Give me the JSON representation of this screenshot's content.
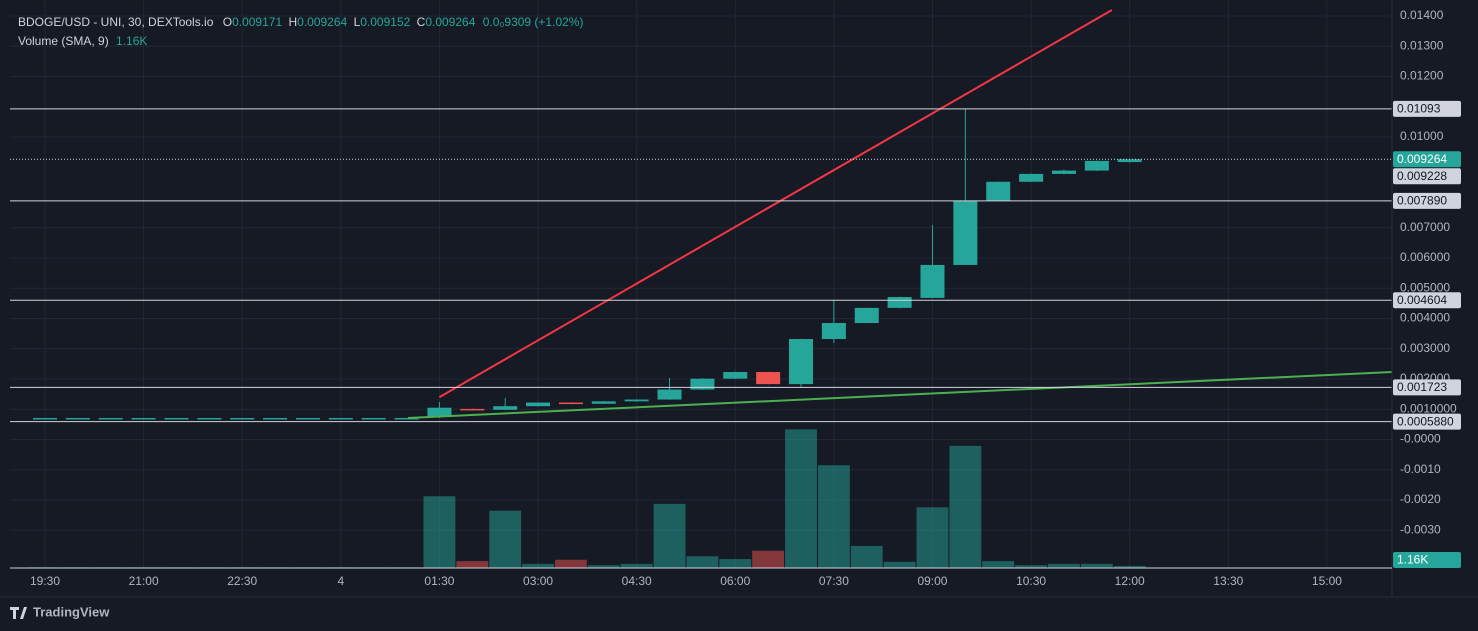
{
  "chart_data": {
    "type": "candlestick",
    "header": {
      "symbol": "BDOGE/USD - UNI, 30, DEXTools.io",
      "ohlc": [
        {
          "k": "O",
          "v": "0.009171"
        },
        {
          "k": "H",
          "v": "0.009264"
        },
        {
          "k": "L",
          "v": "0.009152"
        },
        {
          "k": "C",
          "v": "0.009264"
        }
      ],
      "change": "0.0₀9309 (+1.02%)",
      "volume_name": "Volume (SMA, 9)",
      "volume_value": "1.16K"
    },
    "brand": "TradingView",
    "up_color": "#26a69a",
    "down_color": "#ef5350",
    "open": [
      0.00071,
      0.00071,
      0.00071,
      0.00071,
      0.00071,
      0.00071,
      0.00071,
      0.00071,
      0.00071,
      0.00071,
      0.00071,
      0.00071,
      0.00075,
      0.00101,
      0.00098,
      0.0011,
      0.00122,
      0.00118,
      0.00126,
      0.00132,
      0.00165,
      0.00201,
      0.00223,
      0.00183,
      0.00332,
      0.00385,
      0.00435,
      0.00468,
      0.00577,
      0.00789,
      0.00852,
      0.00878,
      0.00889,
      0.009171
    ],
    "high": [
      0.00071,
      0.00071,
      0.00071,
      0.00071,
      0.00071,
      0.00071,
      0.00071,
      0.00071,
      0.00071,
      0.00071,
      0.00071,
      0.00071,
      0.00124,
      0.00102,
      0.00137,
      0.00123,
      0.00123,
      0.00127,
      0.00133,
      0.00203,
      0.00203,
      0.00224,
      0.00224,
      0.00333,
      0.00461,
      0.00436,
      0.00472,
      0.00709,
      0.01093,
      0.00853,
      0.00879,
      0.00892,
      0.00922,
      0.009264
    ],
    "low": [
      0.00071,
      0.00071,
      0.00071,
      0.00071,
      0.00071,
      0.00071,
      0.00071,
      0.00071,
      0.00071,
      0.00071,
      0.00071,
      0.00071,
      0.00071,
      0.00097,
      0.00097,
      0.00109,
      0.00117,
      0.00117,
      0.00125,
      0.00131,
      0.00164,
      0.002,
      0.00182,
      0.00174,
      0.00319,
      0.00384,
      0.00434,
      0.00467,
      0.00577,
      0.00788,
      0.00851,
      0.00877,
      0.00888,
      0.009152
    ],
    "close": [
      0.00071,
      0.00071,
      0.00071,
      0.00071,
      0.00071,
      0.00071,
      0.00071,
      0.00071,
      0.00071,
      0.00071,
      0.00071,
      0.00071,
      0.00105,
      0.00098,
      0.0011,
      0.00122,
      0.00118,
      0.00126,
      0.00132,
      0.00165,
      0.00201,
      0.00223,
      0.00183,
      0.00332,
      0.00385,
      0.00435,
      0.00471,
      0.00577,
      0.00789,
      0.00852,
      0.00878,
      0.00889,
      0.00921,
      0.009264
    ],
    "volume": [
      0.1,
      0.1,
      0.1,
      0.1,
      0.1,
      0.1,
      0.1,
      0.1,
      0.1,
      0.1,
      0.1,
      0.1,
      10.4,
      1.0,
      8.3,
      0.6,
      1.2,
      0.4,
      0.6,
      9.3,
      1.7,
      1.3,
      2.5,
      20.1,
      14.9,
      3.2,
      0.9,
      8.8,
      17.7,
      1.0,
      0.4,
      0.6,
      0.6,
      0.3
    ],
    "volume_lim": [
      0,
      30
    ],
    "xlim": [
      -1.065,
      40.98
    ],
    "xticks": [
      {
        "value": 0,
        "label": "19:30"
      },
      {
        "value": 3,
        "label": "21:00"
      },
      {
        "value": 6,
        "label": "22:30"
      },
      {
        "value": 9,
        "label": "4"
      },
      {
        "value": 12,
        "label": "01:30"
      },
      {
        "value": 15,
        "label": "03:00"
      },
      {
        "value": 18,
        "label": "04:30"
      },
      {
        "value": 21,
        "label": "06:00"
      },
      {
        "value": 24,
        "label": "07:30"
      },
      {
        "value": 27,
        "label": "09:00"
      },
      {
        "value": 30,
        "label": "10:30"
      },
      {
        "value": 33,
        "label": "12:00"
      },
      {
        "value": 36,
        "label": "13:30"
      },
      {
        "value": 39,
        "label": "15:00"
      }
    ],
    "ylim": [
      -0.00425,
      0.01453
    ],
    "yticks": [
      {
        "value": 0.014,
        "label": "0.01400"
      },
      {
        "value": 0.013,
        "label": "0.01300"
      },
      {
        "value": 0.012,
        "label": "0.01200"
      },
      {
        "value": 0.01,
        "label": "0.01000"
      },
      {
        "value": 0.007,
        "label": "0.007000"
      },
      {
        "value": 0.006,
        "label": "0.006000"
      },
      {
        "value": 0.005,
        "label": "0.005000"
      },
      {
        "value": 0.004,
        "label": "0.004000"
      },
      {
        "value": 0.003,
        "label": "0.003000"
      },
      {
        "value": 0.002,
        "label": "0.002000"
      },
      {
        "value": 0.001,
        "label": "0.0010000"
      },
      {
        "value": 0,
        "label": "-0.0000"
      },
      {
        "value": -0.001,
        "label": "-0.0010"
      },
      {
        "value": -0.002,
        "label": "-0.0020"
      },
      {
        "value": -0.003,
        "label": "-0.0030"
      }
    ],
    "grid": true,
    "levels": [
      {
        "value": 0.01093,
        "label": "0.01093"
      },
      {
        "value": 0.00789,
        "label": "0.007890"
      },
      {
        "value": 0.004604,
        "label": "0.004604"
      },
      {
        "value": 0.001723,
        "label": "0.001723"
      },
      {
        "value": 0.000588,
        "label": "0.0005880"
      }
    ],
    "current_price": {
      "value": 0.009264,
      "label": "0.009264",
      "color": "#26a69a"
    },
    "extra_label": {
      "value": 0.009228,
      "label": "0.009228"
    },
    "trendlines": [
      {
        "color": "#f23645",
        "x": [
          12,
          32.46
        ],
        "y": [
          0.0014,
          0.014198
        ]
      },
      {
        "color": "#4caf50",
        "x": [
          11.04,
          40.98
        ],
        "y": [
          0.00071,
          0.00223
        ]
      }
    ]
  }
}
